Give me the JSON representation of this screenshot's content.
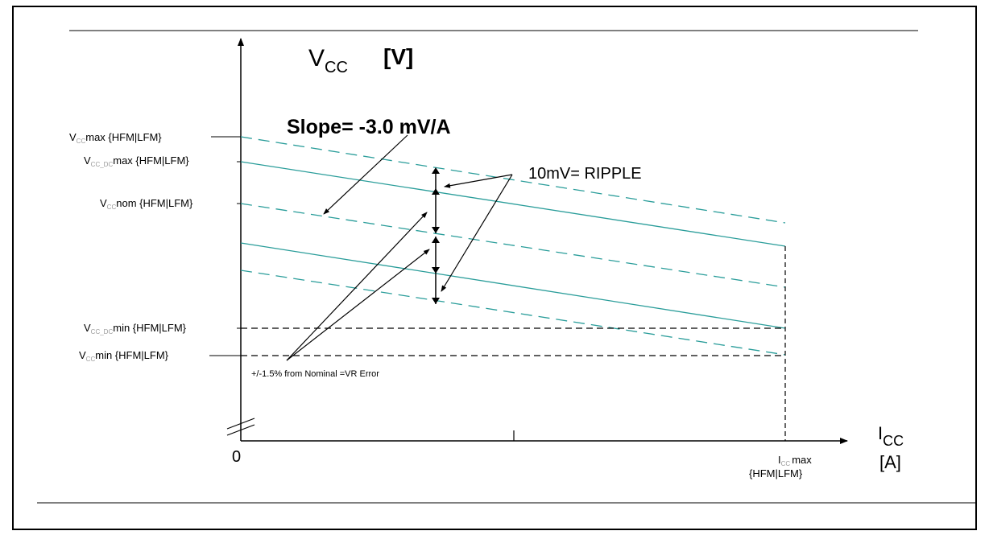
{
  "diagram": {
    "y_axis_label": {
      "main": "V",
      "sub": "CC",
      "unit": "[V]"
    },
    "x_axis_label": {
      "main": "I",
      "sub": "CC",
      "unit": "[A]"
    },
    "origin_label": "0",
    "slope_text": "Slope= -3.0 mV/A",
    "ripple_text": "10mV= RIPPLE",
    "vr_error_text": "+/-1.5% from Nominal =VR Error",
    "y_labels": {
      "vcc_max": {
        "main": "V",
        "sub": "CC",
        "rest": "max {HFM|LFM}"
      },
      "vcc_dc_max": {
        "main": "V",
        "sub": "CC_DC",
        "rest": "max {HFM|LFM}"
      },
      "vcc_nom": {
        "main": "V",
        "sub": "CC",
        "rest": "nom {HFM|LFM}"
      },
      "vcc_dc_min": {
        "main": "V",
        "sub": "CC_DC",
        "rest": "min {HFM|LFM}"
      },
      "vcc_min": {
        "main": "V",
        "sub": "CC",
        "rest": "min {HFM|LFM}"
      }
    },
    "x_labels": {
      "icc_max": {
        "main": "I",
        "sub": "CC",
        "rest": "max",
        "line2": "{HFM|LFM}"
      }
    },
    "colors": {
      "load_line": "#2a9d9a",
      "axis": "#000000",
      "grey_sub": "#9a9a9a"
    }
  }
}
